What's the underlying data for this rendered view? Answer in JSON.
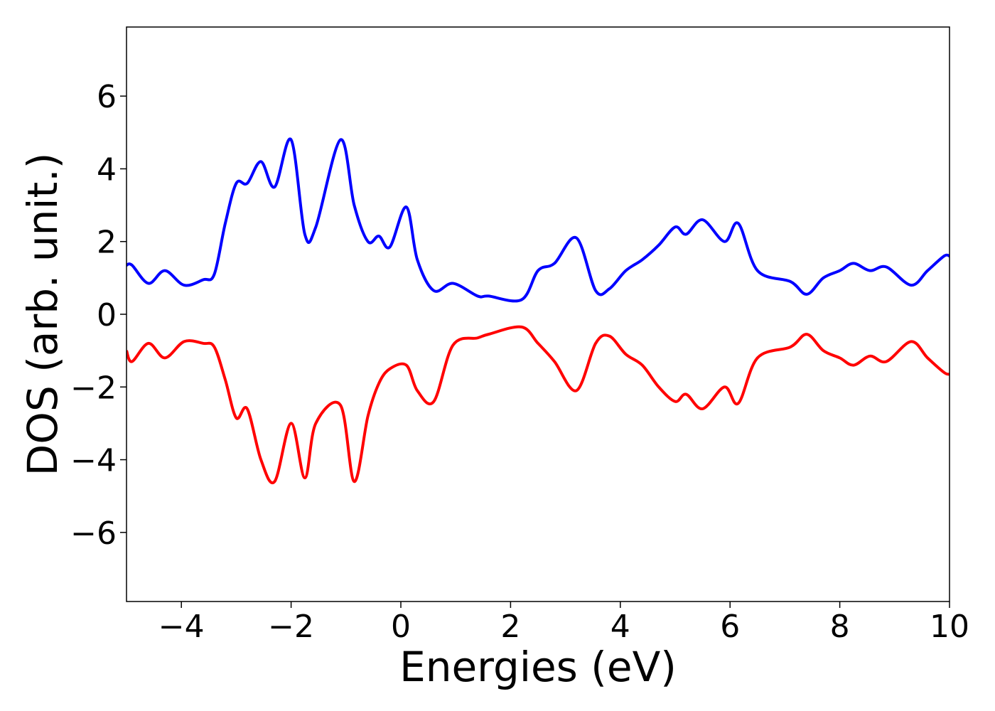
{
  "chart_data": {
    "type": "line",
    "xlabel": "Energies (eV)",
    "ylabel": "DOS (arb. unit.)",
    "x": [
      -5,
      -4.9,
      -4.6,
      -4.3,
      -3.95,
      -3.6,
      -3.4,
      -3.2,
      -3.0,
      -2.8,
      -2.55,
      -2.3,
      -2.0,
      -1.75,
      -1.55,
      -1.1,
      -0.85,
      -0.6,
      -0.4,
      -0.2,
      0.1,
      0.3,
      0.6,
      0.95,
      1.4,
      1.6,
      2.2,
      2.5,
      2.8,
      3.2,
      3.55,
      3.8,
      4.1,
      4.4,
      4.7,
      5.0,
      5.2,
      5.5,
      5.9,
      6.15,
      6.5,
      7.1,
      7.4,
      7.7,
      8.0,
      8.25,
      8.55,
      8.85,
      9.3,
      9.6,
      9.9,
      10
    ],
    "series": [
      {
        "color": "#0000ff",
        "values": [
          1.35,
          1.35,
          0.85,
          1.2,
          0.8,
          0.95,
          1.1,
          2.5,
          3.6,
          3.6,
          4.2,
          3.5,
          4.8,
          2.2,
          2.4,
          4.8,
          3.0,
          2.0,
          2.15,
          1.85,
          2.95,
          1.5,
          0.65,
          0.85,
          0.5,
          0.5,
          0.4,
          1.2,
          1.4,
          2.1,
          0.65,
          0.7,
          1.2,
          1.5,
          1.9,
          2.4,
          2.2,
          2.6,
          2.0,
          2.5,
          1.2,
          0.9,
          0.55,
          1.0,
          1.2,
          1.4,
          1.2,
          1.3,
          0.8,
          1.2,
          1.6,
          1.6
        ]
      },
      {
        "color": "#ff0000",
        "values": [
          -1.0,
          -1.3,
          -0.8,
          -1.2,
          -0.75,
          -0.8,
          -0.9,
          -1.8,
          -2.85,
          -2.6,
          -4.0,
          -4.6,
          -3.0,
          -4.5,
          -3.0,
          -2.5,
          -4.6,
          -2.8,
          -1.9,
          -1.5,
          -1.4,
          -2.1,
          -2.4,
          -0.85,
          -0.65,
          -0.55,
          -0.35,
          -0.8,
          -1.3,
          -2.1,
          -0.8,
          -0.6,
          -1.1,
          -1.4,
          -2.0,
          -2.4,
          -2.2,
          -2.6,
          -2.0,
          -2.45,
          -1.2,
          -0.9,
          -0.55,
          -1.0,
          -1.2,
          -1.4,
          -1.15,
          -1.3,
          -0.75,
          -1.2,
          -1.6,
          -1.65
        ]
      }
    ],
    "xlim": [
      -5,
      10
    ],
    "xticks": [
      {
        "value": -4,
        "label": "−4"
      },
      {
        "value": -2,
        "label": "−2"
      },
      0,
      2,
      4,
      6,
      8,
      10
    ],
    "ylim": [
      -7.9,
      7.9
    ],
    "yticks": [
      {
        "value": -6,
        "label": "−6"
      },
      {
        "value": -4,
        "label": "−4"
      },
      {
        "value": -2,
        "label": "−2"
      },
      0,
      2,
      4,
      6
    ],
    "grid": false
  }
}
